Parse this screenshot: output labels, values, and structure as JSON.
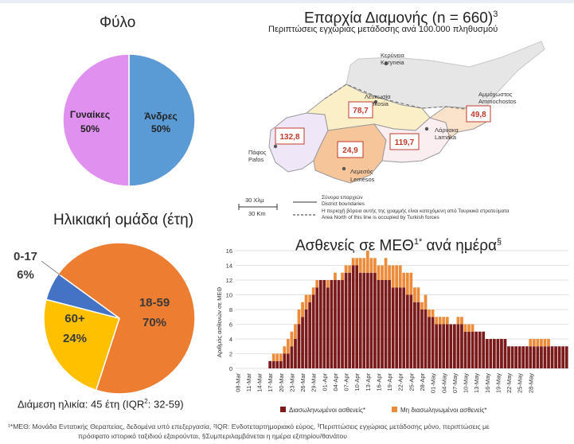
{
  "gender": {
    "title": "Φύλο",
    "chart_data": {
      "type": "pie",
      "slices": [
        {
          "label": "Άνδρες",
          "pct_label": "50%",
          "value": 50,
          "color": "#5b9bd5"
        },
        {
          "label": "Γυναίκες",
          "pct_label": "50%",
          "value": 50,
          "color": "#e090ee"
        }
      ]
    }
  },
  "age": {
    "title": "Ηλικιακή ομάδα (έτη)",
    "median": "Διάμεση ηλικία: 45 έτη (IQR",
    "median_sup": "2",
    "median_tail": ": 32-59)",
    "chart_data": {
      "type": "pie",
      "slices": [
        {
          "label": "18-59",
          "pct_label": "70%",
          "value": 70,
          "color": "#ed7d31"
        },
        {
          "label": "60+",
          "pct_label": "24%",
          "value": 24,
          "color": "#ffc000"
        },
        {
          "label": "0-17",
          "pct_label": "6%",
          "value": 6,
          "color": "#4472c4"
        }
      ]
    }
  },
  "map": {
    "title": "Επαρχία Διαμονής (n = 660)",
    "title_sup": "3",
    "subtitle": "Περιπτώσεις εγχώριας μετάδοσης ανά 100.000 πληθυσμού",
    "places": [
      {
        "gr": "Κερύνεια",
        "en": "Keryneia"
      },
      {
        "gr": "Λευκωσία",
        "en": "Lefkosia"
      },
      {
        "gr": "Αμμόχωστος",
        "en": "Ammochostos"
      },
      {
        "gr": "Λάρνακα",
        "en": "Larnaka"
      },
      {
        "gr": "Πάφος",
        "en": "Pafos"
      },
      {
        "gr": "Λεμεσός",
        "en": "Lemesos"
      }
    ],
    "rates": {
      "lefkosia": "78,7",
      "ammochostos": "49,8",
      "pafos": "132,8",
      "larnaka": "119,7",
      "lemesos": "24,9"
    },
    "scale_gr": "30 Χλμ",
    "scale_en": "30 Km",
    "legend_boundary_gr": "Σύνορα επαρχιών",
    "legend_boundary_en": "District boundaries",
    "legend_north_gr": "Η περιοχή βόρεια αυτής της γραμμής είναι κατεχόμενη από Τουρκικά στρατεύματα",
    "legend_north_en": "Area North of this line is occupied by Turkish forces",
    "colors": {
      "lefkosia": "#fbefc7",
      "pafos": "#efe6f7",
      "lemesos": "#f6c69a",
      "larnaka": "#fbeef0",
      "ammochostos": "#fbe2cb",
      "north": "#e6e6e6"
    }
  },
  "icu": {
    "title": "Ασθενείς σε ΜΕΘ",
    "title_sup": "1*",
    "title_tail": " ανά ημέρα",
    "title_tail_sup": "§",
    "chart_data": {
      "type": "bar",
      "stacked": true,
      "ylabel": "Αριθμός ασθενών σε ΜΕΘ",
      "ylim": [
        0,
        16
      ],
      "yticks": [
        0,
        2,
        4,
        6,
        8,
        10,
        12,
        14,
        16
      ],
      "grid": true,
      "legend_position": "bottom",
      "x_tick_labels": [
        "08-Mar",
        "11-Mar",
        "14-Mar",
        "17-Mar",
        "20-Mar",
        "23-Mar",
        "26-Mar",
        "29-Mar",
        "01-Apr",
        "04-Apr",
        "07-Apr",
        "10-Apr",
        "13-Apr",
        "16-Apr",
        "19-Apr",
        "22-Apr",
        "25-Apr",
        "28-Apr",
        "01-May",
        "04-May",
        "07-May",
        "10-May",
        "13-May",
        "16-May",
        "19-May",
        "22-May",
        "25-May",
        "28-May"
      ],
      "first_date": "08-Mar",
      "series": [
        {
          "name": "Διασωληνωμένοι ασθενείς*",
          "color": "#7b1a1a",
          "values": [
            0,
            0,
            0,
            0,
            0,
            0,
            0,
            0,
            0,
            1,
            1,
            1,
            1,
            2,
            2,
            3,
            4,
            6,
            7,
            8,
            9,
            10,
            11,
            12,
            12,
            11,
            12,
            12,
            12,
            12,
            13,
            13,
            14,
            14,
            13,
            13,
            13,
            13,
            13,
            12,
            12,
            12,
            12,
            11,
            11,
            11,
            11,
            10,
            10,
            9,
            9,
            8,
            8,
            7,
            7,
            6,
            6,
            6,
            6,
            6,
            6,
            6,
            6,
            5,
            5,
            5,
            5,
            5,
            5,
            4,
            4,
            4,
            4,
            4,
            4,
            3,
            3,
            3,
            3,
            3,
            3,
            3,
            3,
            3,
            3,
            3,
            3,
            3,
            3,
            3,
            3,
            3
          ]
        },
        {
          "name": "Μη διασωληνωμένοι ασθενείς*",
          "color": "#ec8c3a",
          "values": [
            0,
            0,
            0,
            0,
            0,
            0,
            0,
            0,
            0,
            0,
            1,
            1,
            1,
            1,
            2,
            2,
            2,
            2,
            2,
            2,
            1,
            1,
            1,
            0,
            0,
            1,
            0,
            1,
            0,
            1,
            1,
            1,
            1,
            1,
            2,
            2,
            3,
            2,
            2,
            2,
            2,
            3,
            2,
            3,
            3,
            3,
            2,
            3,
            3,
            2,
            2,
            1,
            2,
            1,
            1,
            1,
            1,
            1,
            1,
            0,
            0,
            1,
            1,
            1,
            1,
            1,
            0,
            0,
            0,
            0,
            0,
            0,
            0,
            0,
            0,
            0,
            0,
            0,
            0,
            0,
            0,
            1,
            1,
            1,
            1,
            1,
            1,
            0,
            0,
            0,
            0,
            0
          ]
        }
      ]
    }
  },
  "footnote": {
    "line1": "¹*ΜΕΘ: Μονάδα Εντατικής Θεραπείας, δεδομένα υπό επεξεργασία, ²IQR: Ενδοτεταρτημοριακό εύρος, ³Περιπτώσεις εγχώριας μετάδοσης μόνο, περιπτώσεις με",
    "line2": "πρόσφατο ιστορικό ταξιδιού εξαιρούνται, §Συμπεριλαμβάνεται η ημέρα εξιτηρίου/θανάτου"
  }
}
